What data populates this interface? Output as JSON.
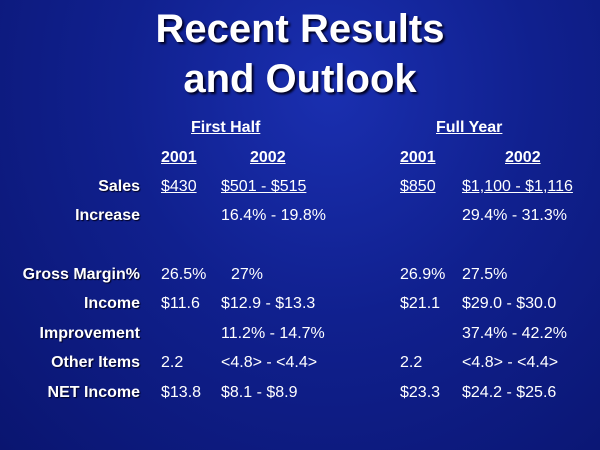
{
  "title": {
    "line1": "Recent Results",
    "line2": "and Outlook"
  },
  "headers": {
    "first_half": "First Half",
    "full_year": "Full Year",
    "fh_2001": "2001",
    "fh_2002": "2002",
    "fy_2001": "2001",
    "fy_2002": "2002"
  },
  "rows": [
    {
      "label": "Sales",
      "fh2001": "$430",
      "fh2002": "$501 - $515",
      "fy2001": "$850",
      "fy2002": "$1,100 - $1,116"
    },
    {
      "label": "Increase",
      "fh2001": "",
      "fh2002": "16.4% - 19.8%",
      "fy2001": "",
      "fy2002": "29.4% - 31.3%"
    },
    {
      "label": "Gross Margin%",
      "fh2001": "26.5%",
      "fh2002": "27%",
      "fy2001": "26.9%",
      "fy2002": "27.5%"
    },
    {
      "label": "Income",
      "fh2001": "$11.6",
      "fh2002": "$12.9 - $13.3",
      "fy2001": "$21.1",
      "fy2002": "$29.0 - $30.0"
    },
    {
      "label": "Improvement",
      "fh2001": "",
      "fh2002": "11.2% - 14.7%",
      "fy2001": "",
      "fy2002": "37.4% - 42.2%"
    },
    {
      "label": "Other Items",
      "fh2001": "2.2",
      "fh2002": "<4.8> - <4.4>",
      "fy2001": "2.2",
      "fy2002": "<4.8> - <4.4>"
    },
    {
      "label": "NET Income",
      "fh2001": "$13.8",
      "fh2002": "$8.1 - $8.9",
      "fy2001": "$23.3",
      "fy2002": "$24.2 - $25.6"
    }
  ]
}
